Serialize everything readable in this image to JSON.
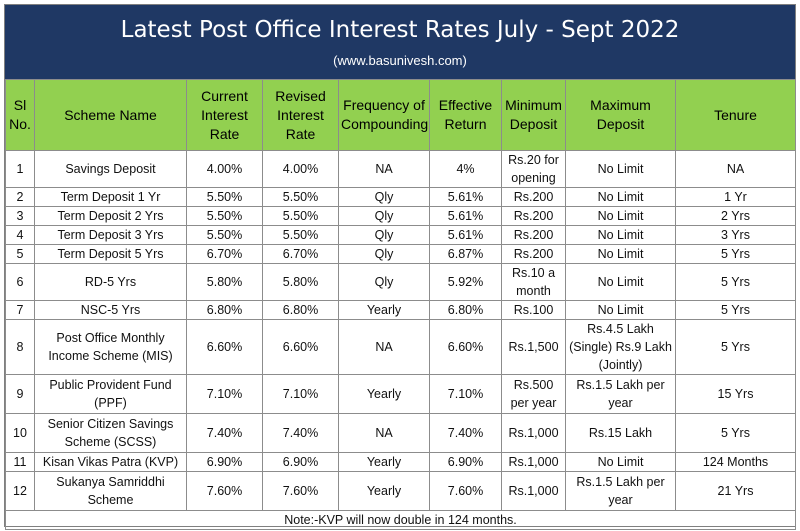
{
  "header": {
    "title": "Latest Post Office Interest Rates July - Sept 2022",
    "subtitle": "(www.basunivesh.com)"
  },
  "columns": [
    "Sl No.",
    "Scheme Name",
    "Current Interest Rate",
    "Revised Interest Rate",
    "Frequency of Compounding",
    "Effective Return",
    "Minimum Deposit",
    "Maximum Deposit",
    "Tenure"
  ],
  "rows": [
    [
      "1",
      "Savings Deposit",
      "4.00%",
      "4.00%",
      "NA",
      "4%",
      "Rs.20 for opening",
      "No Limit",
      "NA"
    ],
    [
      "2",
      "Term Deposit 1 Yr",
      "5.50%",
      "5.50%",
      "Qly",
      "5.61%",
      "Rs.200",
      "No Limit",
      "1 Yr"
    ],
    [
      "3",
      "Term Deposit 2 Yrs",
      "5.50%",
      "5.50%",
      "Qly",
      "5.61%",
      "Rs.200",
      "No Limit",
      "2 Yrs"
    ],
    [
      "4",
      "Term Deposit 3 Yrs",
      "5.50%",
      "5.50%",
      "Qly",
      "5.61%",
      "Rs.200",
      "No Limit",
      "3 Yrs"
    ],
    [
      "5",
      "Term Deposit 5 Yrs",
      "6.70%",
      "6.70%",
      "Qly",
      "6.87%",
      "Rs.200",
      "No Limit",
      "5 Yrs"
    ],
    [
      "6",
      "RD-5 Yrs",
      "5.80%",
      "5.80%",
      "Qly",
      "5.92%",
      "Rs.10 a month",
      "No Limit",
      "5 Yrs"
    ],
    [
      "7",
      "NSC-5 Yrs",
      "6.80%",
      "6.80%",
      "Yearly",
      "6.80%",
      "Rs.100",
      "No Limit",
      "5 Yrs"
    ],
    [
      "8",
      "Post Office Monthly Income Scheme (MIS)",
      "6.60%",
      "6.60%",
      "NA",
      "6.60%",
      "Rs.1,500",
      "Rs.4.5 Lakh (Single) Rs.9 Lakh (Jointly)",
      "5 Yrs"
    ],
    [
      "9",
      "Public Provident Fund (PPF)",
      "7.10%",
      "7.10%",
      "Yearly",
      "7.10%",
      "Rs.500 per year",
      "Rs.1.5 Lakh per year",
      "15 Yrs"
    ],
    [
      "10",
      "Senior Citizen Savings Scheme (SCSS)",
      "7.40%",
      "7.40%",
      "NA",
      "7.40%",
      "Rs.1,000",
      "Rs.15 Lakh",
      "5 Yrs"
    ],
    [
      "11",
      "Kisan Vikas Patra (KVP)",
      "6.90%",
      "6.90%",
      "Yearly",
      "6.90%",
      "Rs.1,000",
      "No Limit",
      "124 Months"
    ],
    [
      "12",
      "Sukanya Samriddhi Scheme",
      "7.60%",
      "7.60%",
      "Yearly",
      "7.60%",
      "Rs.1,000",
      "Rs.1.5 Lakh per year",
      "21 Yrs"
    ]
  ],
  "note": "Note:-KVP will now double in 124 months.",
  "colors": {
    "banner": "#1f3864",
    "header": "#92d050"
  }
}
